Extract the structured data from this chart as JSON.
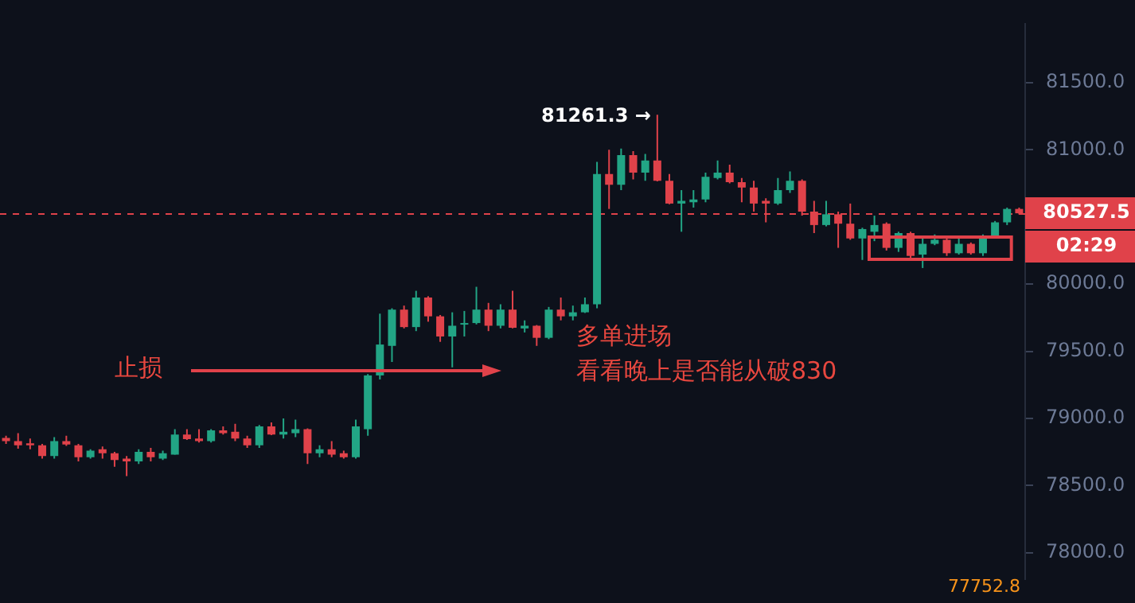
{
  "chart_data": {
    "type": "candlestick",
    "categories": [
      null,
      null,
      null,
      null,
      null,
      null,
      null,
      null,
      null,
      null,
      null,
      null,
      null,
      null,
      null,
      null,
      null,
      null,
      null,
      null,
      null,
      null,
      null,
      null,
      null,
      null,
      null,
      null,
      null,
      null,
      null,
      null,
      null,
      null,
      null,
      null,
      null,
      null,
      null,
      null,
      null,
      null,
      null,
      null,
      null,
      null,
      null,
      null,
      null,
      null,
      null,
      null,
      null,
      null,
      null,
      null,
      null,
      null,
      null,
      null,
      null,
      null,
      null,
      null,
      null,
      null,
      null,
      null,
      null,
      null,
      null,
      null,
      null,
      null,
      null,
      null,
      null,
      null,
      null,
      null,
      null,
      null,
      null,
      null,
      null
    ],
    "ohlc": [
      [
        78855,
        78870,
        78810,
        78830
      ],
      [
        78830,
        78890,
        78775,
        78800
      ],
      [
        78815,
        78850,
        78770,
        78800
      ],
      [
        78800,
        78810,
        78700,
        78720
      ],
      [
        78720,
        78860,
        78700,
        78830
      ],
      [
        78830,
        78870,
        78795,
        78805
      ],
      [
        78800,
        78810,
        78680,
        78710
      ],
      [
        78710,
        78770,
        78700,
        78760
      ],
      [
        78770,
        78790,
        78700,
        78740
      ],
      [
        78740,
        78750,
        78640,
        78690
      ],
      [
        78700,
        78720,
        78570,
        78680
      ],
      [
        78680,
        78770,
        78660,
        78750
      ],
      [
        78750,
        78780,
        78680,
        78710
      ],
      [
        78700,
        78760,
        78690,
        78740
      ],
      [
        78730,
        78920,
        78730,
        78880
      ],
      [
        78880,
        78920,
        78840,
        78845
      ],
      [
        78850,
        78920,
        78820,
        78830
      ],
      [
        78830,
        78920,
        78820,
        78910
      ],
      [
        78910,
        78940,
        78880,
        78890
      ],
      [
        78900,
        78960,
        78830,
        78850
      ],
      [
        78850,
        78870,
        78780,
        78800
      ],
      [
        78800,
        78950,
        78780,
        78940
      ],
      [
        78940,
        78970,
        78875,
        78880
      ],
      [
        78880,
        79000,
        78850,
        78900
      ],
      [
        78890,
        78990,
        78860,
        78920
      ],
      [
        78920,
        78925,
        78660,
        78740
      ],
      [
        78740,
        78800,
        78710,
        78770
      ],
      [
        78770,
        78830,
        78710,
        78730
      ],
      [
        78740,
        78760,
        78700,
        78710
      ],
      [
        78710,
        78990,
        78700,
        78940
      ],
      [
        78920,
        79330,
        78870,
        79320
      ],
      [
        79320,
        79780,
        79290,
        79550
      ],
      [
        79540,
        79820,
        79420,
        79810
      ],
      [
        79810,
        79840,
        79670,
        79680
      ],
      [
        79680,
        79950,
        79650,
        79900
      ],
      [
        79900,
        79910,
        79720,
        79760
      ],
      [
        79760,
        79770,
        79570,
        79610
      ],
      [
        79610,
        79790,
        79380,
        79690
      ],
      [
        79700,
        79800,
        79610,
        79710
      ],
      [
        79710,
        79980,
        79700,
        79810
      ],
      [
        79810,
        79860,
        79650,
        79690
      ],
      [
        79690,
        79850,
        79670,
        79810
      ],
      [
        79810,
        79950,
        79670,
        79675
      ],
      [
        79670,
        79730,
        79640,
        79690
      ],
      [
        79690,
        79695,
        79540,
        79600
      ],
      [
        79600,
        79830,
        79590,
        79810
      ],
      [
        79810,
        79900,
        79730,
        79760
      ],
      [
        79760,
        79840,
        79730,
        79790
      ],
      [
        79790,
        79900,
        79785,
        79850
      ],
      [
        79850,
        80910,
        79820,
        80820
      ],
      [
        80820,
        81000,
        80560,
        80740
      ],
      [
        80740,
        81010,
        80700,
        80960
      ],
      [
        80960,
        80990,
        80780,
        80830
      ],
      [
        80830,
        80970,
        80770,
        80920
      ],
      [
        80920,
        81261.3,
        80765,
        80770
      ],
      [
        80770,
        80820,
        80595,
        80600
      ],
      [
        80600,
        80700,
        80390,
        80620
      ],
      [
        80610,
        80700,
        80570,
        80630
      ],
      [
        80630,
        80830,
        80610,
        80800
      ],
      [
        80790,
        80920,
        80780,
        80830
      ],
      [
        80830,
        80890,
        80750,
        80760
      ],
      [
        80760,
        80790,
        80610,
        80720
      ],
      [
        80720,
        80770,
        80540,
        80600
      ],
      [
        80620,
        80640,
        80460,
        80600
      ],
      [
        80600,
        80790,
        80590,
        80700
      ],
      [
        80700,
        80840,
        80680,
        80770
      ],
      [
        80770,
        80780,
        80510,
        80540
      ],
      [
        80540,
        80620,
        80380,
        80440
      ],
      [
        80440,
        80620,
        80430,
        80520
      ],
      [
        80520,
        80540,
        80270,
        80450
      ],
      [
        80450,
        80600,
        80330,
        80340
      ],
      [
        80340,
        80420,
        80180,
        80410
      ],
      [
        80390,
        80510,
        80320,
        80440
      ],
      [
        80450,
        80460,
        80250,
        80270
      ],
      [
        80270,
        80390,
        80240,
        80380
      ],
      [
        80380,
        80390,
        80190,
        80210
      ],
      [
        80220,
        80340,
        80120,
        80300
      ],
      [
        80300,
        80370,
        80290,
        80330
      ],
      [
        80330,
        80340,
        80210,
        80230
      ],
      [
        80230,
        80340,
        80220,
        80300
      ],
      [
        80300,
        80310,
        80220,
        80230
      ],
      [
        80230,
        80370,
        80210,
        80360
      ],
      [
        80360,
        80470,
        80350,
        80460
      ],
      [
        80460,
        80570,
        80440,
        80560
      ],
      [
        80560,
        80570,
        80520,
        80527.5
      ]
    ],
    "colors": [
      "#e0424a",
      "#e0424a",
      "#e0424a",
      "#e0424a",
      "#22a585",
      "#e0424a",
      "#e0424a",
      "#22a585",
      "#e0424a",
      "#e0424a",
      "#e0424a",
      "#22a585",
      "#e0424a",
      "#22a585",
      "#22a585",
      "#e0424a",
      "#e0424a",
      "#22a585",
      "#e0424a",
      "#e0424a",
      "#e0424a",
      "#22a585",
      "#e0424a",
      "#22a585",
      "#22a585",
      "#e0424a",
      "#22a585",
      "#e0424a",
      "#e0424a",
      "#22a585",
      "#22a585",
      "#22a585",
      "#22a585",
      "#e0424a",
      "#22a585",
      "#e0424a",
      "#e0424a",
      "#22a585",
      "#22a585",
      "#22a585",
      "#e0424a",
      "#22a585",
      "#e0424a",
      "#22a585",
      "#e0424a",
      "#22a585",
      "#e0424a",
      "#22a585",
      "#22a585",
      "#22a585",
      "#e0424a",
      "#22a585",
      "#e0424a",
      "#22a585",
      "#e0424a",
      "#e0424a",
      "#22a585",
      "#22a585",
      "#22a585",
      "#22a585",
      "#e0424a",
      "#e0424a",
      "#e0424a",
      "#e0424a",
      "#22a585",
      "#22a585",
      "#e0424a",
      "#e0424a",
      "#22a585",
      "#e0424a",
      "#e0424a",
      "#22a585",
      "#22a585",
      "#e0424a",
      "#22a585",
      "#e0424a",
      "#22a585",
      "#22a585",
      "#e0424a",
      "#22a585",
      "#e0424a",
      "#22a585",
      "#22a585",
      "#22a585",
      "#e0424a"
    ],
    "ylim": [
      77805,
      81936
    ],
    "yticks": [
      {
        "value": 78000,
        "label": "78000.0"
      },
      {
        "value": 78500,
        "label": "78500.0"
      },
      {
        "value": 79000,
        "label": "79000.0"
      },
      {
        "value": 79500,
        "label": "79500.0"
      },
      {
        "value": 80000,
        "label": "80000.0"
      },
      {
        "value": 81000,
        "label": "81000.0"
      },
      {
        "value": 81500,
        "label": "81500.0"
      }
    ],
    "tick_labels": "y",
    "grid": false,
    "legend": false,
    "ref_lines": [
      {
        "axis": "y",
        "value": 80527.5,
        "label": "80527.5",
        "color": "#e0424a",
        "line_style": "dashed"
      }
    ],
    "annotations": [
      "81261.3 →",
      "止损",
      "多单进场",
      "看看晚上是否能从破830",
      "02:29",
      "77752.8"
    ]
  }
}
